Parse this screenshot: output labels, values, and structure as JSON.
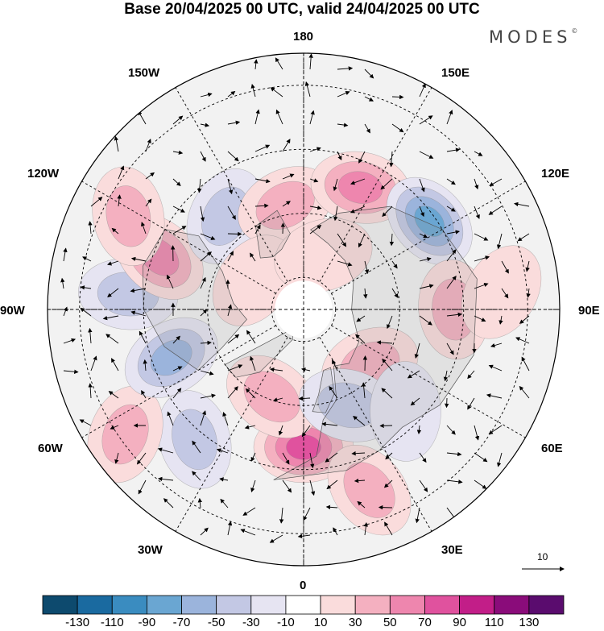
{
  "title": "Base 20/04/2025 00 UTC, valid 24/04/2025 00 UTC",
  "brand": "MODES",
  "brand_mark": "©",
  "grid_labels": {
    "top": "180",
    "top_right": "150E",
    "right_upper": "120E",
    "right": "90E",
    "right_lower": "60E",
    "bottom_right": "30E",
    "bottom": "0",
    "bottom_left": "30W",
    "left_lower": "60W",
    "left": "90W",
    "left_upper": "120W",
    "top_left": "150W"
  },
  "vector_scale_label": "10",
  "colorbar": {
    "labels": [
      "-130",
      "-110",
      "-90",
      "-70",
      "-50",
      "-30",
      "-10",
      "10",
      "30",
      "50",
      "70",
      "90",
      "110",
      "130"
    ],
    "colors": [
      "#0d4a6e",
      "#1a6aa0",
      "#3a8cc0",
      "#6aa6d2",
      "#9bb4dc",
      "#c3c8e4",
      "#e6e4f2",
      "#ffffff",
      "#fadcdc",
      "#f4b0c0",
      "#ee86ae",
      "#e0529e",
      "#c21e88",
      "#8a0c7a",
      "#5a0c6e"
    ]
  },
  "anomaly_centers": [
    {
      "lon": 0,
      "lat": 47,
      "value": 80
    },
    {
      "lon": -20,
      "lat": 61,
      "value": 40
    },
    {
      "lon": -40,
      "lat": 37,
      "value": -40
    },
    {
      "lon": -55,
      "lat": 22,
      "value": 40
    },
    {
      "lon": -70,
      "lat": 46,
      "value": -50
    },
    {
      "lon": -95,
      "lat": 35,
      "value": -40
    },
    {
      "lon": -110,
      "lat": 42,
      "value": 50
    },
    {
      "lon": -118,
      "lat": 28,
      "value": 35
    },
    {
      "lon": -140,
      "lat": 52,
      "value": -40
    },
    {
      "lon": -170,
      "lat": 57,
      "value": 30
    },
    {
      "lon": 155,
      "lat": 48,
      "value": 50
    },
    {
      "lon": 125,
      "lat": 42,
      "value": -80
    },
    {
      "lon": 90,
      "lat": 43,
      "value": 40
    },
    {
      "lon": 95,
      "lat": 28,
      "value": 25
    },
    {
      "lon": 50,
      "lat": 63,
      "value": 35
    },
    {
      "lon": 25,
      "lat": 57,
      "value": -40
    },
    {
      "lon": 20,
      "lat": 30,
      "value": 30
    },
    {
      "lon": 45,
      "lat": 45,
      "value": -20
    },
    {
      "lon": -120,
      "lat": 72,
      "value": 25
    },
    {
      "lon": 160,
      "lat": 72,
      "value": 25
    }
  ]
}
